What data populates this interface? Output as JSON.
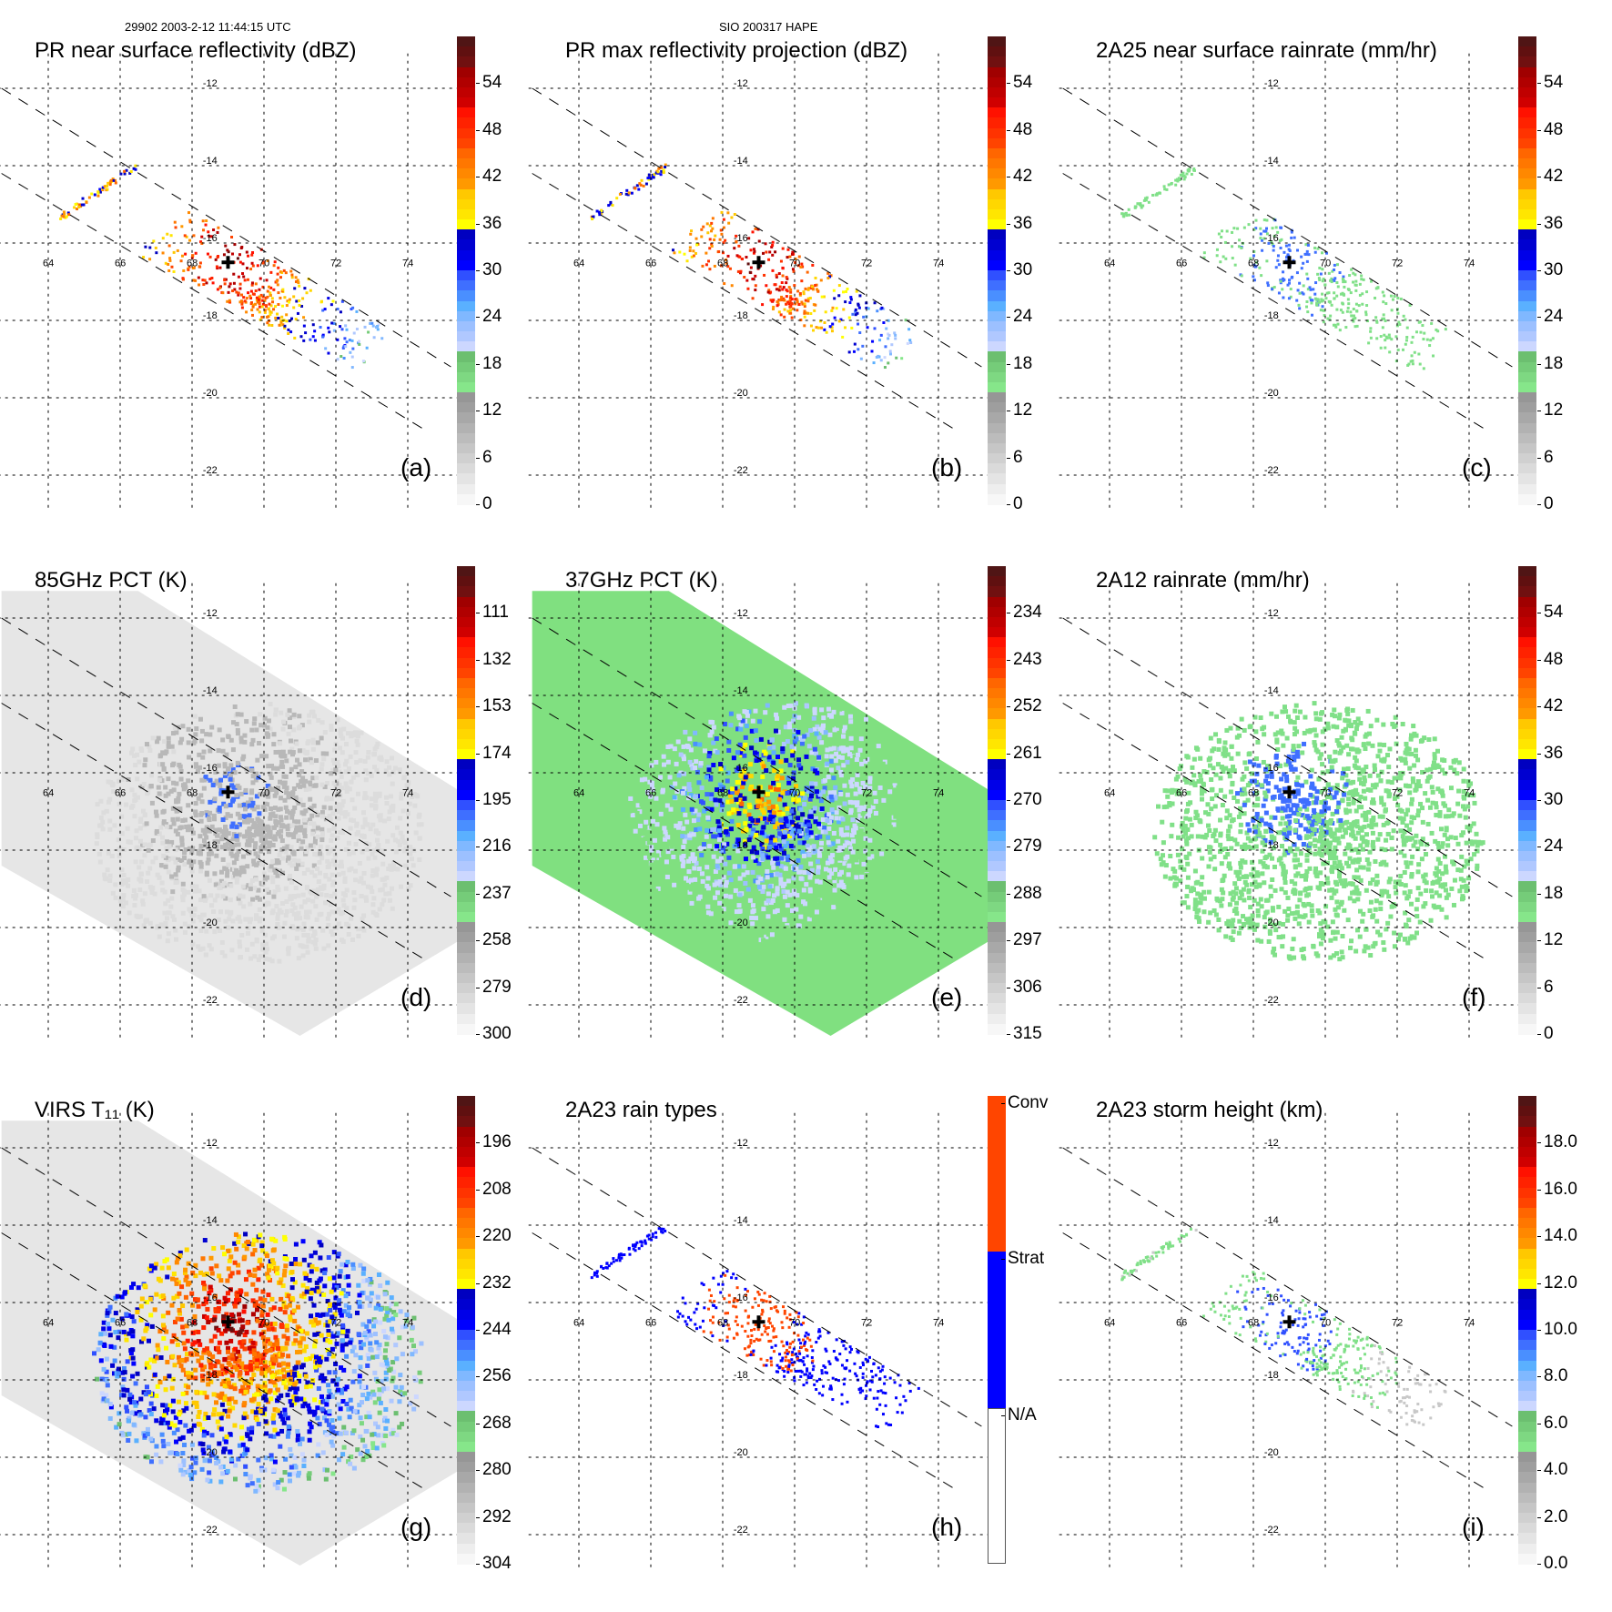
{
  "header": {
    "orbit_time": "29902 2003-2-12 11:44:15 UTC",
    "storm_id": "SIO 200317 HAPE"
  },
  "map": {
    "lon_ticks": [
      "64",
      "66",
      "68",
      "70",
      "72",
      "74"
    ],
    "lat_ticks": [
      "-12",
      "-14",
      "-16",
      "-18",
      "-20",
      "-22"
    ],
    "lon_values": [
      64,
      66,
      68,
      70,
      72,
      74
    ],
    "lat_values": [
      -12,
      -14,
      -16,
      -18,
      -20,
      -22
    ],
    "storm_center": {
      "lon": 69.0,
      "lat": -16.5
    }
  },
  "panels": [
    {
      "id": "a",
      "title": "PR near surface reflectivity (dBZ)",
      "label": "(a)",
      "kind": "pr_swath_ref",
      "colorbar": {
        "type": "continuous",
        "ticks": [
          "54",
          "48",
          "42",
          "36",
          "30",
          "24",
          "18",
          "12",
          "6",
          "0"
        ],
        "tick_values": [
          54,
          48,
          42,
          36,
          30,
          24,
          18,
          12,
          6,
          0
        ],
        "range": [
          0,
          60
        ]
      }
    },
    {
      "id": "b",
      "title": "PR max reflectivity projection (dBZ)",
      "label": "(b)",
      "kind": "pr_swath_max",
      "colorbar": {
        "type": "continuous",
        "ticks": [
          "54",
          "48",
          "42",
          "36",
          "30",
          "24",
          "18",
          "12",
          "6",
          "0"
        ],
        "tick_values": [
          54,
          48,
          42,
          36,
          30,
          24,
          18,
          12,
          6,
          0
        ],
        "range": [
          0,
          60
        ]
      }
    },
    {
      "id": "c",
      "title": "2A25 near surface rainrate (mm/hr)",
      "label": "(c)",
      "kind": "pr_swath_rain",
      "colorbar": {
        "type": "continuous",
        "ticks": [
          "54",
          "48",
          "42",
          "36",
          "30",
          "24",
          "18",
          "12",
          "6",
          "0"
        ],
        "tick_values": [
          54,
          48,
          42,
          36,
          30,
          24,
          18,
          12,
          6,
          0
        ],
        "range": [
          0,
          60
        ]
      }
    },
    {
      "id": "d",
      "title": "85GHz PCT (K)",
      "label": "(d)",
      "kind": "tmi_85",
      "colorbar": {
        "type": "continuous",
        "ticks": [
          "111",
          "132",
          "153",
          "174",
          "195",
          "216",
          "237",
          "258",
          "279",
          "300"
        ],
        "tick_values": [
          111,
          132,
          153,
          174,
          195,
          216,
          237,
          258,
          279,
          300
        ],
        "range": [
          90,
          300
        ]
      }
    },
    {
      "id": "e",
      "title": "37GHz PCT (K)",
      "label": "(e)",
      "kind": "tmi_37",
      "colorbar": {
        "type": "continuous",
        "ticks": [
          "234",
          "243",
          "252",
          "261",
          "270",
          "279",
          "288",
          "297",
          "306",
          "315"
        ],
        "tick_values": [
          234,
          243,
          252,
          261,
          270,
          279,
          288,
          297,
          306,
          315
        ],
        "range": [
          225,
          315
        ]
      }
    },
    {
      "id": "f",
      "title": "2A12 rainrate (mm/hr)",
      "label": "(f)",
      "kind": "tmi_rain",
      "colorbar": {
        "type": "continuous",
        "ticks": [
          "54",
          "48",
          "42",
          "36",
          "30",
          "24",
          "18",
          "12",
          "6",
          "0"
        ],
        "tick_values": [
          54,
          48,
          42,
          36,
          30,
          24,
          18,
          12,
          6,
          0
        ],
        "range": [
          0,
          60
        ]
      }
    },
    {
      "id": "g",
      "title": "VIRS T₁₁ (K)",
      "label": "(g)",
      "kind": "virs",
      "colorbar": {
        "type": "continuous",
        "ticks": [
          "196",
          "208",
          "220",
          "232",
          "244",
          "256",
          "268",
          "280",
          "292",
          "304"
        ],
        "tick_values": [
          196,
          208,
          220,
          232,
          244,
          256,
          268,
          280,
          292,
          304
        ],
        "range": [
          184,
          304
        ]
      }
    },
    {
      "id": "h",
      "title": "2A23 rain types",
      "label": "(h)",
      "kind": "pr_types",
      "colorbar": {
        "type": "categorical",
        "ticks": [
          "Conv",
          "Strat",
          "N/A"
        ],
        "colors": [
          "#ff4500",
          "#0000ff",
          "#ffffff"
        ]
      }
    },
    {
      "id": "i",
      "title": "2A23 storm height (km)",
      "label": "(i)",
      "kind": "pr_height",
      "colorbar": {
        "type": "continuous",
        "ticks": [
          "18.0",
          "16.0",
          "14.0",
          "12.0",
          "10.0",
          "8.0",
          "6.0",
          "4.0",
          "2.0",
          "0.0"
        ],
        "tick_values": [
          18,
          16,
          14,
          12,
          10,
          8,
          6,
          4,
          2,
          0
        ],
        "range": [
          0,
          20
        ]
      }
    }
  ],
  "colormap": [
    "#f7f7f7",
    "#eeeeee",
    "#e4e4e4",
    "#dadada",
    "#d0d0d0",
    "#c6c6c6",
    "#bcbcbc",
    "#b2b2b2",
    "#a8a8a8",
    "#9e9e9e",
    "#969696",
    "#86e68a",
    "#7ed882",
    "#75cc79",
    "#6cbf70",
    "#ccd7ff",
    "#b0c8ff",
    "#9cc0ff",
    "#80b8ff",
    "#5ab0ff",
    "#4a8fff",
    "#3f6fff",
    "#3050ff",
    "#0000ff",
    "#0000e8",
    "#0000d0",
    "#0000c0",
    "#ffff00",
    "#ffe600",
    "#ffd700",
    "#ffc800",
    "#ff9900",
    "#ff8800",
    "#ff7700",
    "#ff6600",
    "#ff4400",
    "#ff3300",
    "#ff2200",
    "#ff1100",
    "#d00000",
    "#c00000",
    "#b00000",
    "#a00000",
    "#701010",
    "#601010",
    "#501515"
  ]
}
